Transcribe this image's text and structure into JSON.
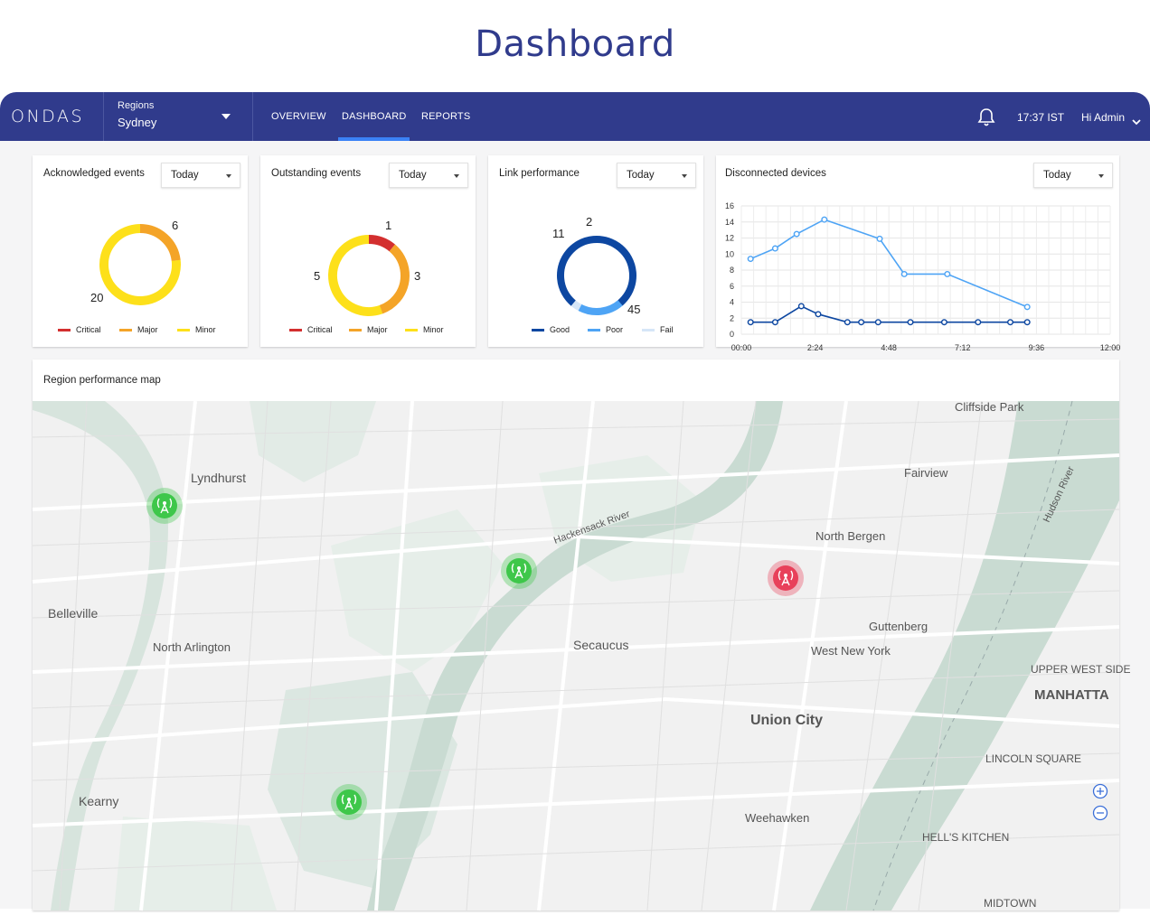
{
  "page_title": "Dashboard",
  "topbar": {
    "logo": "ONDAS",
    "region_label": "Regions",
    "region_value": "Sydney",
    "tabs": [
      {
        "label": "OVERVIEW",
        "active": false
      },
      {
        "label": "DASHBOARD",
        "active": true
      },
      {
        "label": "REPORTS",
        "active": false
      }
    ],
    "time": "17:37 IST",
    "user": "Hi Admin",
    "accent_color": "#303b8c",
    "active_tab_underline_color": "#3b82f6"
  },
  "cards": {
    "acknowledged": {
      "title": "Acknowledged events",
      "filter": "Today",
      "labels": [
        "6",
        "20"
      ],
      "legend": [
        "Critical",
        "Major",
        "Minor"
      ]
    },
    "outstanding": {
      "title": "Outstanding events",
      "filter": "Today",
      "labels": [
        "1",
        "3",
        "5"
      ],
      "legend": [
        "Critical",
        "Major",
        "Minor"
      ]
    },
    "link": {
      "title": "Link performance",
      "filter": "Today",
      "labels": [
        "2",
        "11",
        "45"
      ],
      "legend": [
        "Good",
        "Poor",
        "Fail"
      ]
    },
    "disconnected": {
      "title": "Disconnected devices",
      "filter": "Today"
    }
  },
  "colors": {
    "critical": "#d32f2f",
    "major": "#f4a428",
    "minor": "#fde01a",
    "good": "#0d47a1",
    "poor": "#4ea4f5",
    "fail": "#d6e6f7",
    "marker_ok": "#3ec74a",
    "marker_alert": "#e8405a"
  },
  "chart_data": [
    {
      "type": "pie",
      "subtype": "donut",
      "series": [
        {
          "name": "Critical",
          "value": 0
        },
        {
          "name": "Major",
          "value": 6
        },
        {
          "name": "Minor",
          "value": 20
        }
      ]
    },
    {
      "type": "pie",
      "subtype": "donut",
      "series": [
        {
          "name": "Critical",
          "value": 1
        },
        {
          "name": "Major",
          "value": 3
        },
        {
          "name": "Minor",
          "value": 5
        }
      ]
    },
    {
      "type": "pie",
      "subtype": "donut",
      "series": [
        {
          "name": "Good",
          "value": 45
        },
        {
          "name": "Poor",
          "value": 11
        },
        {
          "name": "Fail",
          "value": 2
        }
      ]
    },
    {
      "type": "line",
      "x_ticks": [
        "00:00",
        "2:24",
        "4:48",
        "7:12",
        "9:36",
        "12:00"
      ],
      "y_ticks": [
        0,
        2,
        4,
        6,
        8,
        10,
        12,
        14,
        16
      ],
      "xlim_hours": [
        0,
        12
      ],
      "ylim": [
        0,
        16
      ],
      "grid": true,
      "series": [
        {
          "color": "#4ea4f5",
          "points": [
            [
              0.3,
              9.4
            ],
            [
              1.1,
              10.7
            ],
            [
              1.8,
              12.5
            ],
            [
              2.7,
              14.3
            ],
            [
              4.5,
              11.9
            ],
            [
              5.3,
              7.5
            ],
            [
              6.7,
              7.5
            ],
            [
              9.3,
              3.4
            ]
          ]
        },
        {
          "color": "#0d47a1",
          "points": [
            [
              0.3,
              1.5
            ],
            [
              1.1,
              1.5
            ],
            [
              1.95,
              3.5
            ],
            [
              2.5,
              2.5
            ],
            [
              3.45,
              1.5
            ],
            [
              3.9,
              1.5
            ],
            [
              4.45,
              1.5
            ],
            [
              5.5,
              1.5
            ],
            [
              6.6,
              1.5
            ],
            [
              7.7,
              1.5
            ],
            [
              8.75,
              1.5
            ],
            [
              9.3,
              1.5
            ]
          ]
        }
      ]
    }
  ],
  "map": {
    "title": "Region performance map",
    "places": [
      "Lyndhurst",
      "Belleville",
      "North Arlington",
      "Kearny",
      "Secaucus",
      "North Bergen",
      "Fairview",
      "Cliffside Park",
      "Guttenberg",
      "West New York",
      "Union City",
      "Weehawken",
      "UPPER WEST SIDE",
      "MANHATTA",
      "LINCOLN SQUARE",
      "HELL'S KITCHEN",
      "MIDTOWN"
    ],
    "rivers": [
      "Hackensack River",
      "Hudson River"
    ],
    "markers": [
      {
        "status": "ok"
      },
      {
        "status": "ok"
      },
      {
        "status": "ok"
      },
      {
        "status": "alert"
      }
    ],
    "zoom_in": "+",
    "zoom_out": "−"
  }
}
